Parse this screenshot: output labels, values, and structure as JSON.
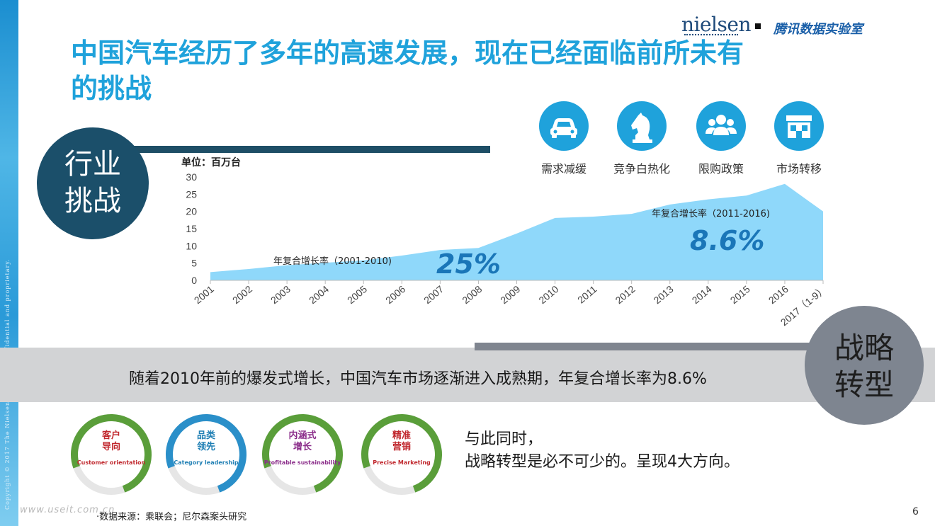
{
  "title": "中国汽车经历了多年的高速发展，现在已经面临前所未有的挑战",
  "brand": {
    "nielsen": "nielsen",
    "tencent": "腾讯数据实验室"
  },
  "sections": {
    "industry": "行业\n挑战",
    "strategy": "战略\n转型"
  },
  "copyright": "Copyright © 2017 The Nielsen Company. Confidential and proprietary.",
  "icons": [
    {
      "icon": "car-icon",
      "label": "需求减缓"
    },
    {
      "icon": "chess-knight-icon",
      "label": "竞争白热化"
    },
    {
      "icon": "people-icon",
      "label": "限购政策"
    },
    {
      "icon": "store-icon",
      "label": "市场转移"
    }
  ],
  "chart_data": {
    "type": "area",
    "unit_label": "单位：百万台",
    "categories": [
      "2001",
      "2002",
      "2003",
      "2004",
      "2005",
      "2006",
      "2007",
      "2008",
      "2009",
      "2010",
      "2011",
      "2012",
      "2013",
      "2014",
      "2015",
      "2016",
      "2017（1-9）"
    ],
    "values": [
      2.4,
      3.3,
      4.4,
      5.1,
      5.8,
      7.2,
      8.8,
      9.4,
      13.6,
      18.1,
      18.5,
      19.3,
      22.0,
      23.5,
      24.6,
      28.0,
      20.0
    ],
    "ylim": [
      0,
      30
    ],
    "yticks": [
      0,
      5,
      10,
      15,
      20,
      25,
      30
    ],
    "color": "#8fd8fa",
    "annotations": [
      {
        "label": "年复合增长率（2001-2010)",
        "value": "25%"
      },
      {
        "label": "年复合增长率（2011-2016)",
        "value": "8.6%"
      }
    ]
  },
  "band_text": "随着2010年前的爆发式增长，中国汽车市场逐渐进入成熟期，年复合增长率为8.6%",
  "rings": [
    {
      "cn": "客户\n导向",
      "en": "Customer orientation",
      "color": "#c0272d"
    },
    {
      "cn": "品类\n领先",
      "en": "Category leadership",
      "color": "#1f7fb4"
    },
    {
      "cn": "内涵式\n增长",
      "en": "Profitable  sustainability",
      "color": "#8b2d8a"
    },
    {
      "cn": "精准\n营销",
      "en": "Precise Marketing",
      "color": "#c0272d"
    }
  ],
  "side_text": [
    "与此同时，",
    "战略转型是必不可少的。呈现4大方向。"
  ],
  "source": "·数据来源：乘联会；尼尔森案头研究",
  "watermark": "www.useit.com.cn",
  "page_number": "6"
}
